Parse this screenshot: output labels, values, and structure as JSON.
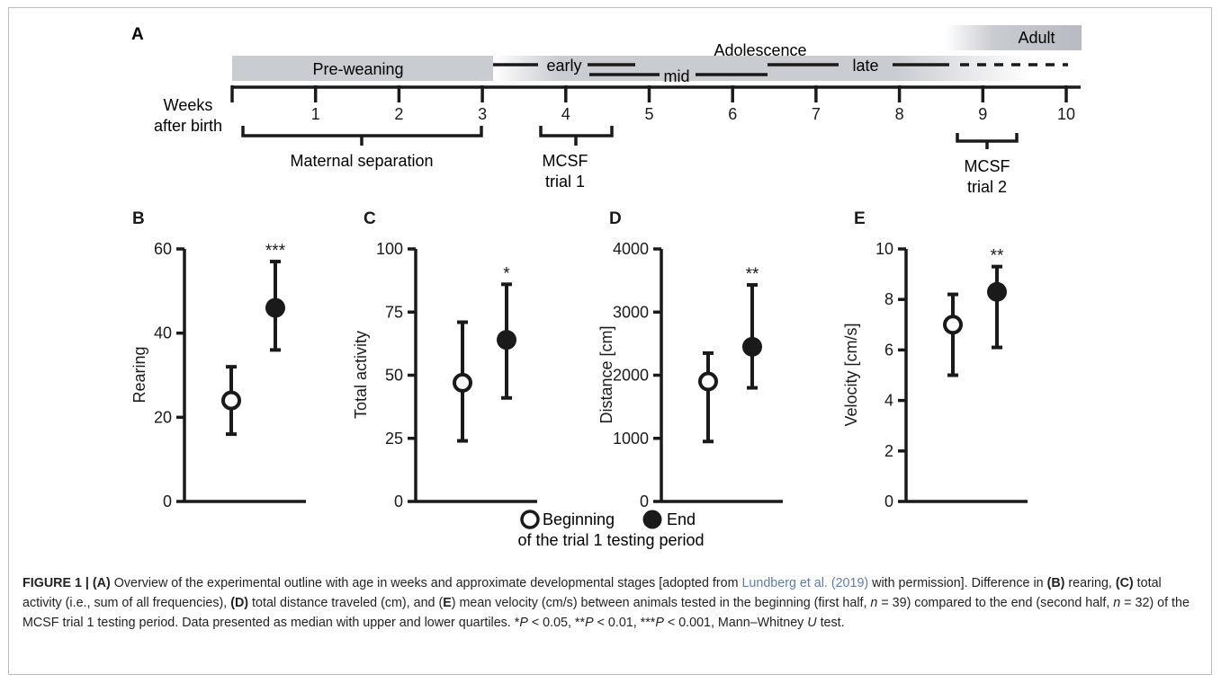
{
  "panel_a": {
    "panel_label": "A",
    "axis_label_line1": "Weeks",
    "axis_label_line2": "after birth",
    "weeks": [
      1,
      2,
      3,
      4,
      5,
      6,
      7,
      8,
      9,
      10
    ],
    "stage_preweaning": "Pre-weaning",
    "stage_adolescence": "Adolescence",
    "stage_adult": "Adult",
    "substage_early": "early",
    "substage_mid": "mid",
    "substage_late": "late",
    "bracket_maternal_separation": "Maternal separation",
    "mcsf1_line1": "MCSF",
    "mcsf1_line2": "trial 1",
    "mcsf2_line1": "MCSF",
    "mcsf2_line2": "trial 2",
    "colors": {
      "band": "#c9ccd1",
      "line": "#1a1a1a"
    }
  },
  "legend": {
    "beginning": "Beginning",
    "end": "End",
    "subtitle": "of the trial 1 testing period"
  },
  "chart_data": [
    {
      "panel": "B",
      "type": "scatter",
      "ylabel": "Rearing",
      "ylim": [
        0,
        60
      ],
      "yticks": [
        0,
        20,
        40,
        60
      ],
      "series": [
        {
          "name": "Beginning",
          "median": 24,
          "lower": 16,
          "upper": 32,
          "marker": "open"
        },
        {
          "name": "End",
          "median": 46,
          "lower": 36,
          "upper": 57,
          "marker": "filled"
        }
      ],
      "significance": "***"
    },
    {
      "panel": "C",
      "type": "scatter",
      "ylabel": "Total activity",
      "ylim": [
        0,
        100
      ],
      "yticks": [
        0,
        25,
        50,
        75,
        100
      ],
      "series": [
        {
          "name": "Beginning",
          "median": 47,
          "lower": 24,
          "upper": 71,
          "marker": "open"
        },
        {
          "name": "End",
          "median": 64,
          "lower": 41,
          "upper": 86,
          "marker": "filled"
        }
      ],
      "significance": "*"
    },
    {
      "panel": "D",
      "type": "scatter",
      "ylabel": "Distance [cm]",
      "ylim": [
        0,
        4000
      ],
      "yticks": [
        0,
        1000,
        2000,
        3000,
        4000
      ],
      "series": [
        {
          "name": "Beginning",
          "median": 1900,
          "lower": 950,
          "upper": 2350,
          "marker": "open"
        },
        {
          "name": "End",
          "median": 2450,
          "lower": 1800,
          "upper": 3430,
          "marker": "filled"
        }
      ],
      "significance": "**"
    },
    {
      "panel": "E",
      "type": "scatter",
      "ylabel": "Velocity [cm/s]",
      "ylim": [
        0,
        10
      ],
      "yticks": [
        0,
        2,
        4,
        6,
        8,
        10
      ],
      "series": [
        {
          "name": "Beginning",
          "median": 7.0,
          "lower": 5.0,
          "upper": 8.2,
          "marker": "open"
        },
        {
          "name": "End",
          "median": 8.3,
          "lower": 6.1,
          "upper": 9.3,
          "marker": "filled"
        }
      ],
      "significance": "**"
    }
  ],
  "caption": {
    "prefix": "FIGURE 1 | ",
    "a_label": "(A)",
    "a_text_1": " Overview of the experimental outline with age in weeks and approximate developmental stages [adopted from ",
    "a_link": "Lundberg et al. (2019)",
    "a_text_2": " with permission]. Difference in ",
    "b_label": "(B)",
    "b_text": " rearing, ",
    "c_label": "(C)",
    "c_text": " total activity (i.e., sum of all frequencies), ",
    "d_label": "(D)",
    "d_text": " total distance traveled (cm), and (",
    "e_label": "E",
    "e_text": ") mean velocity (cm/s) between animals tested in the beginning (first half, ",
    "n1_var": "n",
    "n1_text": " = 39) compared to the end (second half, ",
    "n2_var": "n",
    "n2_text": " = 32) of the MCSF trial 1 testing period. Data presented as median with upper and lower quartiles. *",
    "p1_var": "P",
    "p1_text": " < 0.05, **",
    "p2_var": "P",
    "p2_text": " < 0.01, ***",
    "p3_var": "P",
    "p3_text": " < 0.001, Mann–Whitney ",
    "u_var": "U",
    "u_text": " test."
  }
}
